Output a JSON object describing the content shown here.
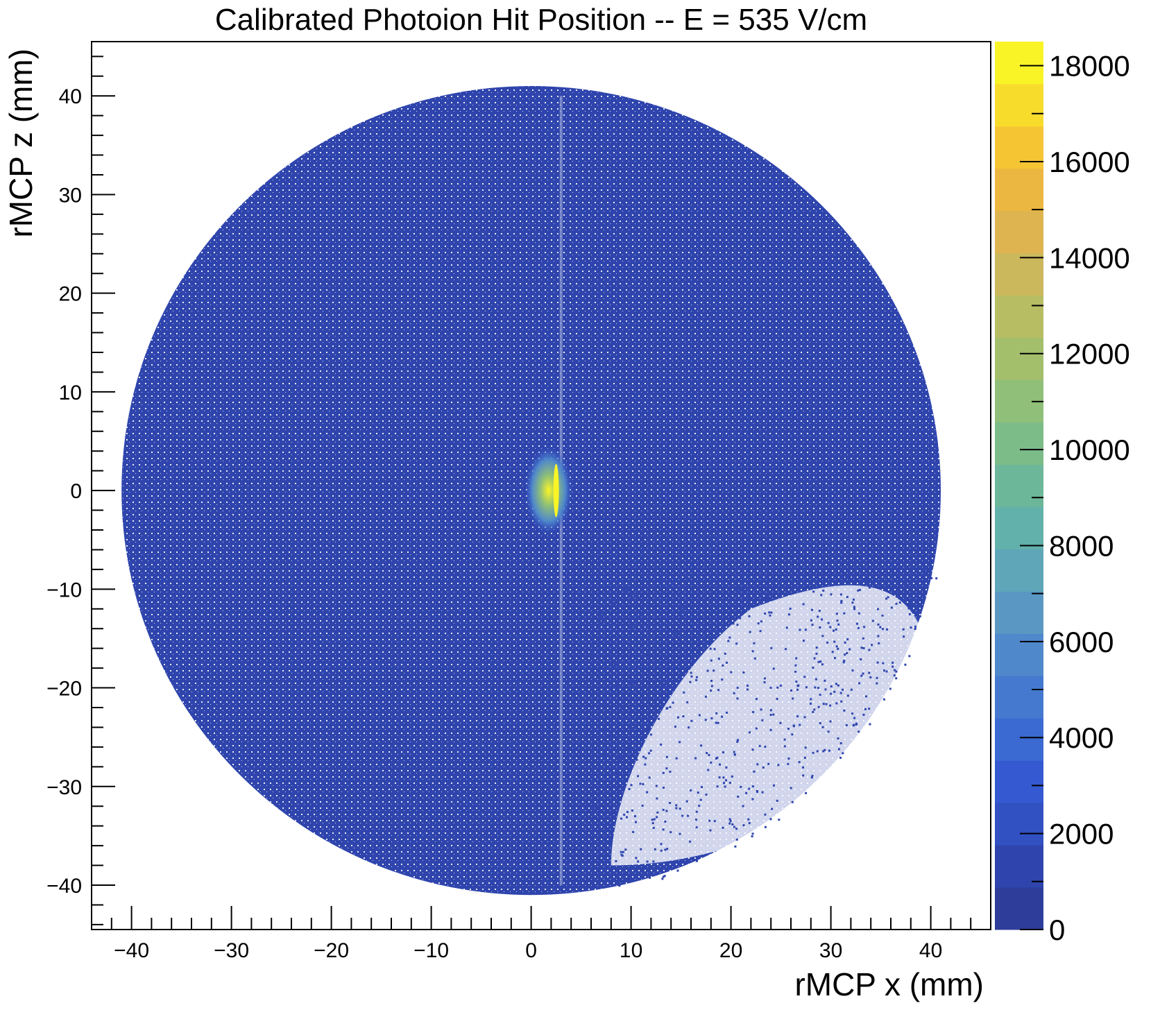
{
  "chart_data": {
    "type": "heatmap",
    "title": "Calibrated Photoion Hit Position -- E = 535 V/cm",
    "xlabel": "rMCP x (mm)",
    "ylabel": "rMCP z (mm)",
    "xlim": [
      -44,
      46
    ],
    "ylim": [
      -44.5,
      45.5
    ],
    "x_ticks": [
      -40,
      -30,
      -20,
      -10,
      0,
      10,
      20,
      30,
      40
    ],
    "y_ticks": [
      -40,
      -30,
      -20,
      -10,
      0,
      10,
      20,
      30,
      40
    ],
    "colorbar": {
      "min": 0,
      "max": 18500,
      "ticks": [
        0,
        2000,
        4000,
        6000,
        8000,
        10000,
        12000,
        14000,
        16000,
        18000
      ],
      "colors": [
        "#2e3d9a",
        "#2f45ad",
        "#3150c2",
        "#3459d0",
        "#3a6ad2",
        "#4479cf",
        "#4f88cb",
        "#5a98c3",
        "#5fa6b8",
        "#63b1ab",
        "#6cb79a",
        "#7cbc88",
        "#8fbf78",
        "#a3bf6c",
        "#b7bd63",
        "#cbb85d",
        "#ddb450",
        "#ecb741",
        "#f5c534",
        "#f8dc2c",
        "#f9f426"
      ]
    },
    "distribution": {
      "detector_radius_mm": 41,
      "detector_center_mm": [
        0,
        0
      ],
      "background_color": "#2f45ad",
      "hotspot": {
        "x_mm": [
          1.0,
          2.5
        ],
        "z_mm": [
          -3,
          3
        ],
        "peak_counts": 18500
      },
      "sparse_region": "lower-right",
      "stripe_x_mm": 3
    },
    "legend": "colorbar-right",
    "grid": false
  }
}
